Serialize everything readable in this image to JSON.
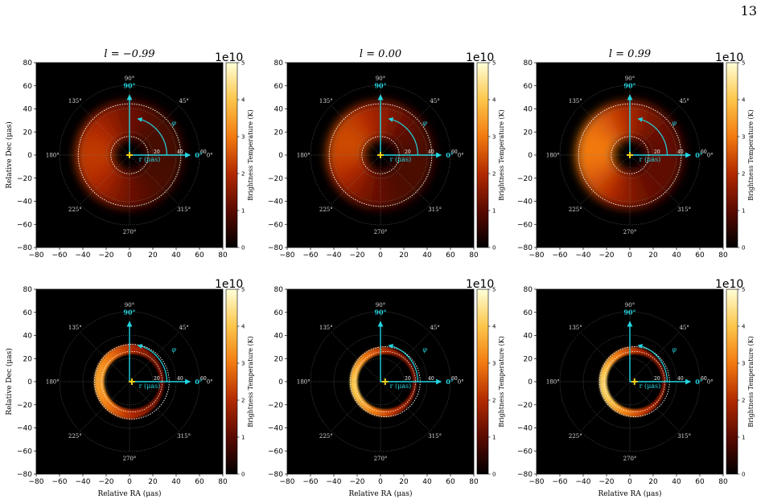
{
  "page": {
    "number": "13"
  },
  "chart_data": {
    "type": "heatmap",
    "rows": 2,
    "columns": 3,
    "column_titles": [
      "l = −0.99",
      "l = 0.00",
      "l = 0.99"
    ],
    "xlabel": "Relative RA (μas)",
    "ylabel": "Relative Dec (μas)",
    "xlim": [
      -80,
      80
    ],
    "ylim": [
      -80,
      80
    ],
    "ticks": [
      -80,
      -60,
      -40,
      -20,
      0,
      20,
      40,
      60,
      80
    ],
    "colorbar": {
      "label": "Brightness Temperature (K)",
      "scale_text": "1e10",
      "ticks": [
        0,
        1,
        2,
        3,
        4,
        5
      ],
      "range": [
        0,
        5
      ]
    },
    "polar_overlay": {
      "angle_labels": [
        {
          "angle": 90,
          "text": "90°"
        },
        {
          "angle": 45,
          "text": "45°"
        },
        {
          "angle": 135,
          "text": "135°"
        },
        {
          "angle": 180,
          "text": "180°"
        },
        {
          "angle": 225,
          "text": "225°"
        },
        {
          "angle": 270,
          "text": "270°"
        },
        {
          "angle": 315,
          "text": "315°"
        },
        {
          "angle": 0,
          "text": "0°"
        }
      ],
      "ring_radii": [
        20,
        40,
        60
      ],
      "radial_labels": [
        "20",
        "40",
        "60"
      ],
      "axis_labels": {
        "up": "90°",
        "right": "0°",
        "phi": "φ",
        "r": "r (μas)"
      }
    },
    "panels": [
      {
        "row": 0,
        "col": 0,
        "center_x": 0,
        "inner_r": 14,
        "outer_r": 46,
        "peak_temp": 2.2,
        "bright_angle": 180
      },
      {
        "row": 0,
        "col": 1,
        "center_x": 0,
        "inner_r": 14,
        "outer_r": 46,
        "peak_temp": 2.4,
        "bright_angle": 160
      },
      {
        "row": 0,
        "col": 2,
        "center_x": 0,
        "inner_r": 14,
        "outer_r": 46,
        "peak_temp": 3.0,
        "bright_angle": 170
      },
      {
        "row": 1,
        "col": 0,
        "center_x": 2,
        "inner_r": 24,
        "outer_r": 32,
        "peak_temp": 3.5,
        "bright_angle": 180
      },
      {
        "row": 1,
        "col": 1,
        "center_x": 4,
        "inner_r": 24,
        "outer_r": 30,
        "peak_temp": 4.0,
        "bright_angle": 190
      },
      {
        "row": 1,
        "col": 2,
        "center_x": 4,
        "inner_r": 24,
        "outer_r": 30,
        "peak_temp": 4.2,
        "bright_angle": 190
      }
    ]
  }
}
